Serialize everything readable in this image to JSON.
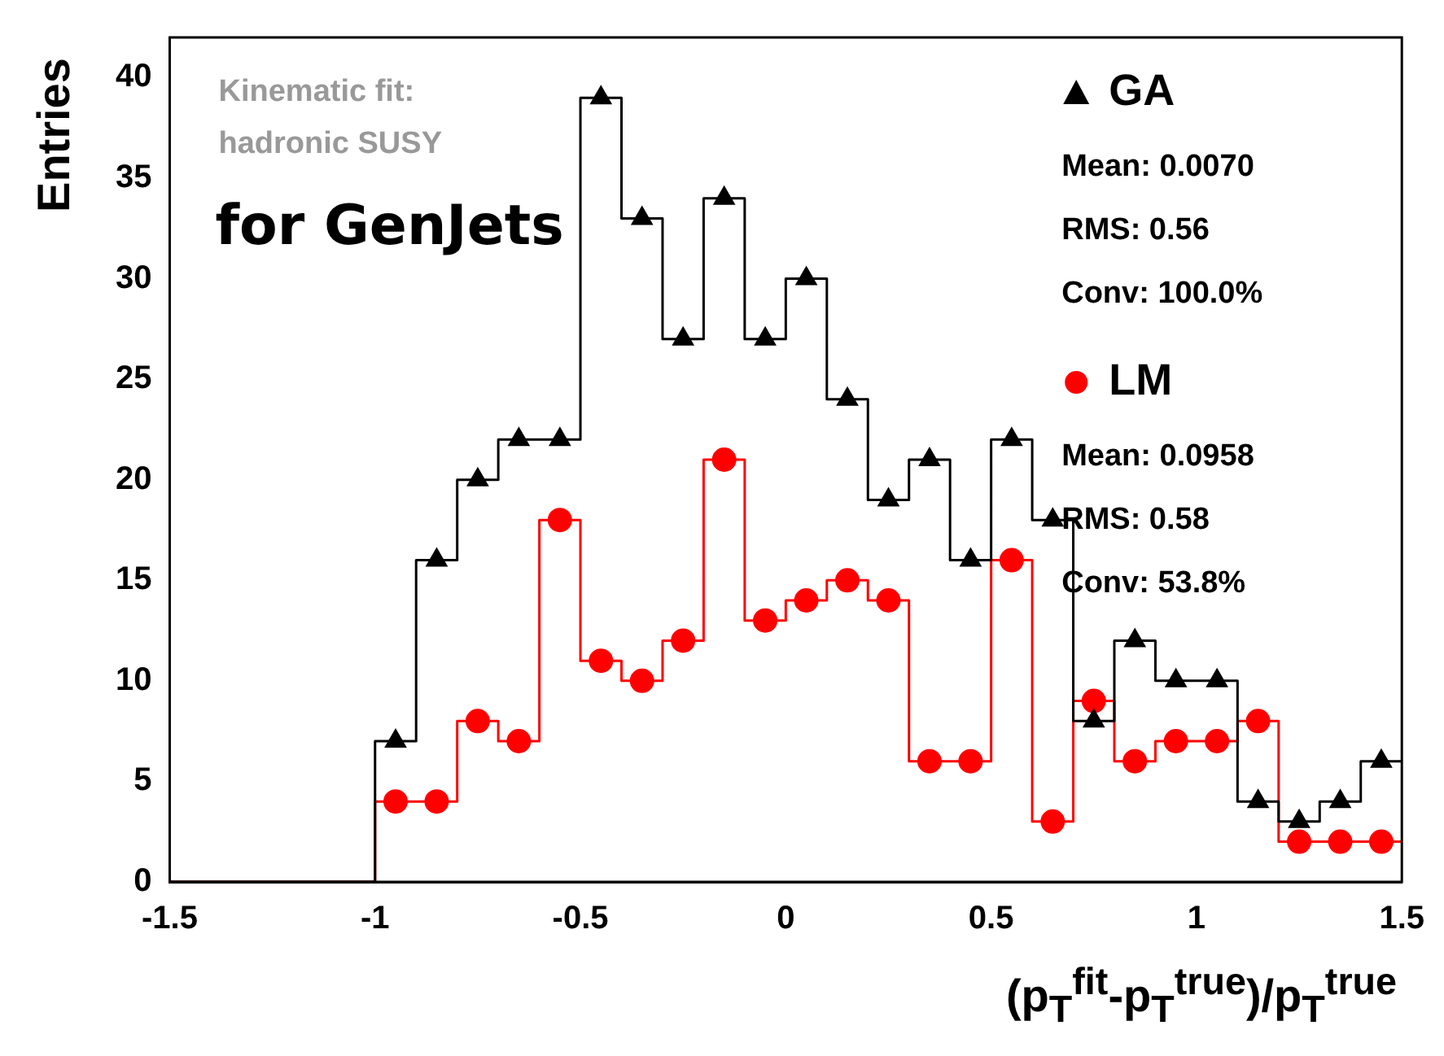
{
  "chart_data": {
    "type": "histogram",
    "xlabel": "(p$_{T}$$^{fit}$-p$_{T}$$^{true}$)/p$_{T}$$^{true}$",
    "ylabel": "Entries",
    "bins": [
      -1.5,
      -1.4,
      -1.3,
      -1.2,
      -1.1,
      -1.0,
      -0.9,
      -0.8,
      -0.7,
      -0.6,
      -0.5,
      -0.4,
      -0.3,
      -0.2,
      -0.1,
      0.0,
      0.1,
      0.2,
      0.3,
      0.4,
      0.5,
      0.6,
      0.7,
      0.8,
      0.9,
      1.0,
      1.1,
      1.2,
      1.3,
      1.4,
      1.5
    ],
    "series": [
      {
        "name": "GA",
        "color": "#000000",
        "marker": "triangle",
        "values": [
          0,
          0,
          0,
          0,
          0,
          7,
          16,
          20,
          22,
          22,
          39,
          33,
          27,
          34,
          27,
          30,
          24,
          19,
          21,
          16,
          22,
          18,
          8,
          12,
          10,
          10,
          4,
          3,
          4,
          6
        ]
      },
      {
        "name": "LM",
        "color": "#ff0000",
        "marker": "circle",
        "values": [
          0,
          0,
          0,
          0,
          0,
          4,
          4,
          8,
          7,
          18,
          11,
          10,
          12,
          21,
          13,
          14,
          15,
          14,
          6,
          6,
          16,
          3,
          9,
          6,
          7,
          7,
          8,
          2,
          2,
          2
        ]
      },
      {
        "type": "scatter",
        "color": "#000000",
        "marker": "triangle",
        "x": [
          -0.95,
          -0.85,
          -0.75,
          -0.65,
          -0.55,
          -0.45,
          -0.35,
          -0.25,
          -0.15,
          -0.05,
          0.05,
          0.15,
          0.25,
          0.35,
          0.45,
          0.55,
          0.65,
          0.75,
          0.85,
          0.95,
          1.05,
          1.15,
          1.25,
          1.35,
          1.45
        ],
        "values": [
          7,
          16,
          20,
          22,
          22,
          39,
          33,
          27,
          34,
          27,
          30,
          24,
          19,
          21,
          16,
          22,
          18,
          8,
          12,
          10,
          10,
          4,
          3,
          4,
          6
        ]
      },
      {
        "type": "scatter",
        "color": "#ff0000",
        "marker": "circle",
        "x": [
          -0.95,
          -0.85,
          -0.75,
          -0.65,
          -0.55,
          -0.45,
          -0.35,
          -0.25,
          -0.15,
          -0.05,
          0.05,
          0.15,
          0.25,
          0.35,
          0.45,
          0.55,
          0.65,
          0.75,
          0.85,
          0.95,
          1.05,
          1.15,
          1.25,
          1.35,
          1.45
        ],
        "values": [
          4,
          4,
          8,
          7,
          18,
          11,
          10,
          12,
          21,
          13,
          14,
          15,
          14,
          6,
          6,
          16,
          3,
          9,
          6,
          7,
          7,
          8,
          2,
          2,
          2
        ]
      }
    ],
    "xlim": [
      -1.5,
      1.5
    ],
    "xticks": [
      -1.5,
      -1,
      -0.5,
      0,
      0.5,
      1,
      1.5
    ],
    "ylim": [
      0,
      42
    ],
    "yticks": [
      0,
      5,
      10,
      15,
      20,
      25,
      30,
      35,
      40
    ],
    "grid": false,
    "legend": "top right",
    "annotations": [
      "Kinematic fit:",
      "hadronic SUSY",
      "for GenJets",
      "Mean: 0.0070",
      "RMS: 0.56",
      "Conv: 100.0%",
      "Mean: 0.0958",
      "RMS: 0.58",
      "Conv: 53.8%"
    ]
  }
}
